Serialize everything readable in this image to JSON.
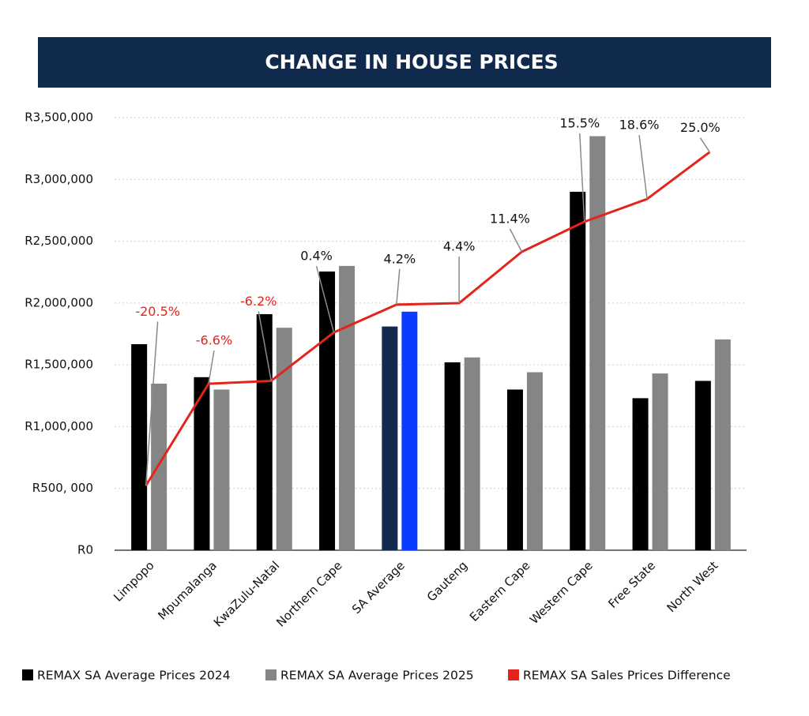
{
  "chart_data": {
    "type": "bar",
    "title": "CHANGE IN HOUSE PRICES",
    "categories": [
      "Limpopo",
      "Mpumalanga",
      "KwaZulu-Natal",
      "Northern Cape",
      "SA Average",
      "Gauteng",
      "Eastern Cape",
      "Western Cape",
      "Free State",
      "North West"
    ],
    "series": [
      {
        "name": "REMAX SA Average Prices 2024",
        "color": "#000000",
        "point_colors": [
          "#000000",
          "#000000",
          "#000000",
          "#000000",
          "#132a4f",
          "#000000",
          "#000000",
          "#000000",
          "#000000",
          "#000000"
        ],
        "values": [
          1667000,
          1400000,
          1910000,
          2255000,
          1810000,
          1520000,
          1300000,
          2900000,
          1230000,
          1370000
        ]
      },
      {
        "name": "REMAX SA Average Prices 2025",
        "color": "#858585",
        "point_colors": [
          "#858585",
          "#858585",
          "#858585",
          "#858585",
          "#0a3cff",
          "#858585",
          "#858585",
          "#858585",
          "#858585",
          "#858585"
        ],
        "values": [
          1348000,
          1300000,
          1800000,
          2300000,
          1930000,
          1560000,
          1440000,
          3350000,
          1430000,
          1705000
        ]
      },
      {
        "name": "REMAX SA Sales Prices Difference",
        "color": "#e3241b",
        "type": "line",
        "axis": "y2",
        "values": [
          -20.5,
          -6.6,
          -6.2,
          0.4,
          4.2,
          4.4,
          11.4,
          15.5,
          18.6,
          25.0
        ],
        "value_labels": [
          "-20.5%",
          "-6.6%",
          "-6.2%",
          "0.4%",
          "4.2%",
          "4.4%",
          "11.4%",
          "15.5%",
          "18.6%",
          "25.0%"
        ]
      }
    ],
    "ylim": [
      0,
      3500000
    ],
    "yticks": [
      {
        "value": 0,
        "label": "R0"
      },
      {
        "value": 500000,
        "label": "R500, 000"
      },
      {
        "value": 1000000,
        "label": "R1,000,000"
      },
      {
        "value": 1500000,
        "label": "R1,500,000"
      },
      {
        "value": 2000000,
        "label": "R2,000,000"
      },
      {
        "value": 2500000,
        "label": "R2,500,000"
      },
      {
        "value": 3000000,
        "label": "R3,000,000"
      },
      {
        "value": 3500000,
        "label": "R3,500,000"
      }
    ],
    "y2lim": [
      -29.3,
      29.7
    ],
    "grid": true,
    "legend": "bottom"
  }
}
